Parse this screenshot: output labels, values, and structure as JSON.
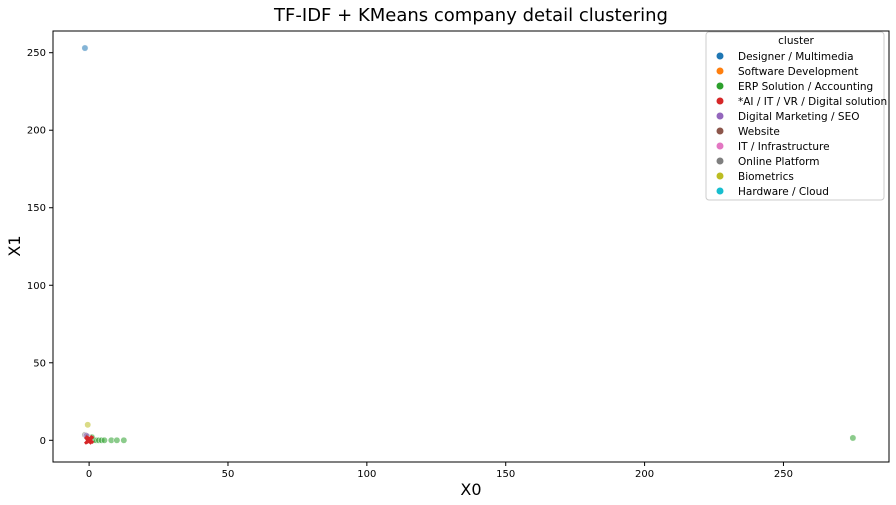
{
  "chart_data": {
    "type": "scatter",
    "title": "TF-IDF + KMeans company detail clustering",
    "xlabel": "X0",
    "ylabel": "X1",
    "xlim": [
      -13,
      288
    ],
    "ylim": [
      -14,
      264
    ],
    "xticks": [
      0,
      50,
      100,
      150,
      200,
      250
    ],
    "yticks": [
      0,
      50,
      100,
      150,
      200,
      250
    ],
    "grid": false,
    "legend": {
      "title": "cluster",
      "placement": "top-right",
      "entries": [
        {
          "label": "Designer / Multimedia",
          "color": "#1f77b4"
        },
        {
          "label": "Software Development",
          "color": "#ff7f0e"
        },
        {
          "label": "ERP Solution / Accounting",
          "color": "#2ca02c"
        },
        {
          "label": "*AI / IT / VR / Digital solution",
          "color": "#d62728"
        },
        {
          "label": "Digital Marketing / SEO",
          "color": "#9467bd"
        },
        {
          "label": "Website",
          "color": "#8c564b"
        },
        {
          "label": "IT / Infrastructure",
          "color": "#e377c2"
        },
        {
          "label": "Online Platform",
          "color": "#7f7f7f"
        },
        {
          "label": "Biometrics",
          "color": "#bcbd22"
        },
        {
          "label": "Hardware / Cloud",
          "color": "#17becf"
        }
      ]
    },
    "series": [
      {
        "name": "Designer / Multimedia",
        "color": "#1f77b4",
        "points": [
          [
            -1.5,
            253
          ]
        ]
      },
      {
        "name": "ERP Solution / Accounting",
        "color": "#2ca02c",
        "points": [
          [
            275,
            1.5
          ],
          [
            1.5,
            0
          ],
          [
            2.5,
            0
          ],
          [
            3.5,
            0
          ],
          [
            4.5,
            0
          ],
          [
            5.5,
            0
          ],
          [
            8,
            0
          ],
          [
            10,
            0
          ],
          [
            12.5,
            0
          ],
          [
            0.5,
            1
          ],
          [
            1,
            2
          ]
        ]
      },
      {
        "name": "Biometrics",
        "color": "#bcbd22",
        "points": [
          [
            -0.5,
            10
          ]
        ]
      },
      {
        "name": "Online Platform",
        "color": "#7f7f7f",
        "points": [
          [
            -1.5,
            3.5
          ],
          [
            -0.5,
            2.5
          ]
        ]
      },
      {
        "name": "Digital Marketing / SEO",
        "color": "#9467bd",
        "points": [
          [
            -1,
            3
          ]
        ]
      },
      {
        "name": "IT / Infrastructure",
        "color": "#e377c2",
        "points": [
          [
            0,
            0.5
          ]
        ]
      },
      {
        "name": "*AI / IT / VR / Digital solution",
        "color": "#d62728",
        "points": [
          [
            -0.5,
            0
          ],
          [
            0.3,
            0
          ],
          [
            0,
            1
          ],
          [
            -0.3,
            -0.5
          ],
          [
            0.5,
            0.5
          ]
        ],
        "marker": "x"
      }
    ]
  }
}
